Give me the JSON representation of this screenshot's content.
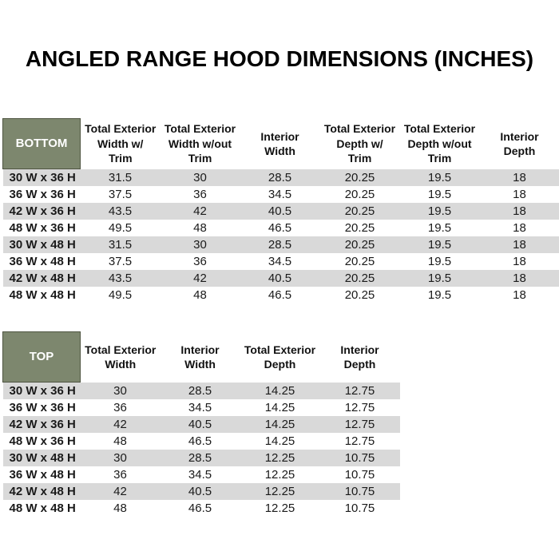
{
  "page": {
    "title": "ANGLED RANGE HOOD DIMENSIONS (INCHES)"
  },
  "colors": {
    "corner_header_green": "#7d876e",
    "row_band_gray": "#d9d9d9",
    "text_black": "#000000"
  },
  "tables": {
    "bottom": {
      "corner_label": "BOTTOM",
      "columns": [
        "Total Exterior\nWidth w/\nTrim",
        "Total Exterior\nWidth w/out\nTrim",
        "Interior\nWidth",
        "Total Exterior\nDepth w/\nTrim",
        "Total Exterior\nDepth w/out\nTrim",
        "Interior\nDepth"
      ],
      "rows": [
        {
          "label": "30 W x 36 H",
          "values": [
            "31.5",
            "30",
            "28.5",
            "20.25",
            "19.5",
            "18"
          ]
        },
        {
          "label": "36 W x 36 H",
          "values": [
            "37.5",
            "36",
            "34.5",
            "20.25",
            "19.5",
            "18"
          ]
        },
        {
          "label": "42 W x 36 H",
          "values": [
            "43.5",
            "42",
            "40.5",
            "20.25",
            "19.5",
            "18"
          ]
        },
        {
          "label": "48 W x 36 H",
          "values": [
            "49.5",
            "48",
            "46.5",
            "20.25",
            "19.5",
            "18"
          ]
        },
        {
          "label": "30 W x 48 H",
          "values": [
            "31.5",
            "30",
            "28.5",
            "20.25",
            "19.5",
            "18"
          ]
        },
        {
          "label": "36 W x 48 H",
          "values": [
            "37.5",
            "36",
            "34.5",
            "20.25",
            "19.5",
            "18"
          ]
        },
        {
          "label": "42 W x 48 H",
          "values": [
            "43.5",
            "42",
            "40.5",
            "20.25",
            "19.5",
            "18"
          ]
        },
        {
          "label": "48 W x 48 H",
          "values": [
            "49.5",
            "48",
            "46.5",
            "20.25",
            "19.5",
            "18"
          ]
        }
      ]
    },
    "top": {
      "corner_label": "TOP",
      "columns": [
        "Total Exterior\nWidth",
        "Interior\nWidth",
        "Total Exterior\nDepth",
        "Interior\nDepth"
      ],
      "rows": [
        {
          "label": "30 W x 36 H",
          "values": [
            "30",
            "28.5",
            "14.25",
            "12.75"
          ]
        },
        {
          "label": "36 W x 36 H",
          "values": [
            "36",
            "34.5",
            "14.25",
            "12.75"
          ]
        },
        {
          "label": "42 W x 36 H",
          "values": [
            "42",
            "40.5",
            "14.25",
            "12.75"
          ]
        },
        {
          "label": "48 W x 36 H",
          "values": [
            "48",
            "46.5",
            "14.25",
            "12.75"
          ]
        },
        {
          "label": "30 W x 48 H",
          "values": [
            "30",
            "28.5",
            "12.25",
            "10.75"
          ]
        },
        {
          "label": "36 W x 48 H",
          "values": [
            "36",
            "34.5",
            "12.25",
            "10.75"
          ]
        },
        {
          "label": "42 W x 48 H",
          "values": [
            "42",
            "40.5",
            "12.25",
            "10.75"
          ]
        },
        {
          "label": "48 W x 48 H",
          "values": [
            "48",
            "46.5",
            "12.25",
            "10.75"
          ]
        }
      ]
    }
  }
}
